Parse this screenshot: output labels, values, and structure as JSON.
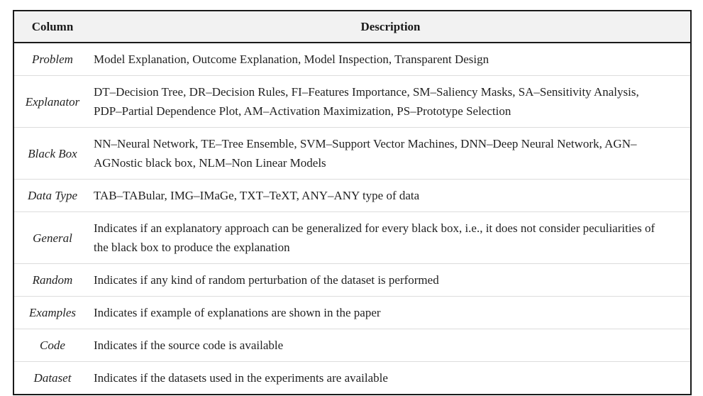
{
  "header": {
    "column": "Column",
    "description": "Description"
  },
  "rows": [
    {
      "name": "Problem",
      "description": "Model Explanation, Outcome Explanation, Model Inspection, Transparent Design"
    },
    {
      "name": "Explanator",
      "description": "DT–Decision Tree, DR–Decision Rules, FI–Features Importance, SM–Saliency Masks, SA–Sensitivity Analysis, PDP–Partial Dependence Plot, AM–Activation Maximization, PS–Prototype Selection"
    },
    {
      "name": "Black Box",
      "description": "NN–Neural Network, TE–Tree Ensemble, SVM–Support Vector Machines, DNN–Deep Neural Network, AGN–AGNostic black box, NLM–Non Linear Models"
    },
    {
      "name": "Data Type",
      "description": "TAB–TABular, IMG–IMaGe, TXT–TeXT, ANY–ANY type of data"
    },
    {
      "name": "General",
      "description": "Indicates if an explanatory approach can be generalized for every black box, i.e., it does not consider peculiarities of the black box to produce the explanation"
    },
    {
      "name": "Random",
      "description": "Indicates if any kind of random perturbation of the dataset is performed"
    },
    {
      "name": "Examples",
      "description": "Indicates if example of explanations are shown in the paper"
    },
    {
      "name": "Code",
      "description": "Indicates if the source code is available"
    },
    {
      "name": "Dataset",
      "description": "Indicates if the datasets used in the experiments are available"
    }
  ]
}
